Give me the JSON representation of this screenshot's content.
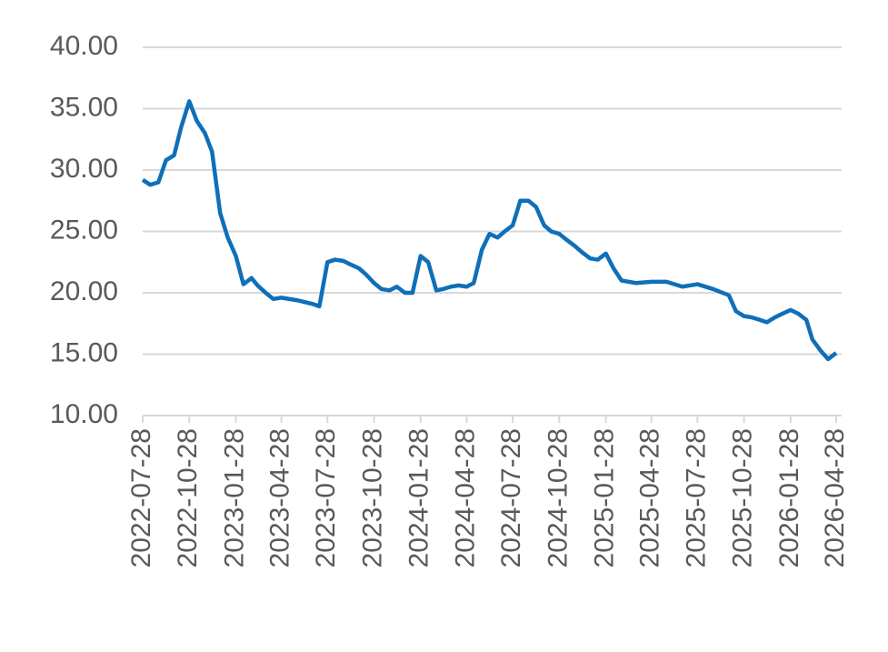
{
  "chart_data": {
    "type": "line",
    "x": [
      "2022-07-28",
      "2022-08-12",
      "2022-08-28",
      "2022-09-12",
      "2022-09-28",
      "2022-10-12",
      "2022-10-28",
      "2022-11-12",
      "2022-11-28",
      "2022-12-12",
      "2022-12-28",
      "2023-01-12",
      "2023-01-28",
      "2023-02-12",
      "2023-02-28",
      "2023-03-12",
      "2023-03-28",
      "2023-04-12",
      "2023-04-28",
      "2023-05-28",
      "2023-06-28",
      "2023-07-12",
      "2023-07-28",
      "2023-08-12",
      "2023-08-28",
      "2023-09-12",
      "2023-09-28",
      "2023-10-12",
      "2023-10-28",
      "2023-11-12",
      "2023-11-28",
      "2023-12-12",
      "2023-12-28",
      "2024-01-12",
      "2024-01-28",
      "2024-02-12",
      "2024-02-28",
      "2024-03-12",
      "2024-03-28",
      "2024-04-12",
      "2024-04-28",
      "2024-05-12",
      "2024-05-28",
      "2024-06-12",
      "2024-06-28",
      "2024-07-12",
      "2024-07-28",
      "2024-08-12",
      "2024-08-28",
      "2024-09-12",
      "2024-09-28",
      "2024-10-12",
      "2024-10-28",
      "2024-11-12",
      "2024-11-28",
      "2024-12-12",
      "2024-12-28",
      "2025-01-12",
      "2025-01-28",
      "2025-02-12",
      "2025-02-28",
      "2025-03-28",
      "2025-04-28",
      "2025-05-28",
      "2025-06-28",
      "2025-07-28",
      "2025-08-28",
      "2025-09-28",
      "2025-10-12",
      "2025-10-28",
      "2025-11-12",
      "2025-11-28",
      "2025-12-12",
      "2025-12-28",
      "2026-01-12",
      "2026-01-28",
      "2026-02-12",
      "2026-02-28",
      "2026-03-12",
      "2026-03-28",
      "2026-04-12",
      "2026-04-28"
    ],
    "series": [
      {
        "color": "#0f6fb8",
        "values": [
          29.2,
          28.8,
          29.0,
          30.8,
          31.2,
          33.5,
          35.6,
          34.0,
          33.0,
          31.5,
          26.5,
          24.5,
          23.0,
          20.7,
          21.2,
          20.6,
          20.0,
          19.5,
          19.6,
          19.4,
          19.1,
          18.9,
          22.5,
          22.7,
          22.6,
          22.3,
          22.0,
          21.5,
          20.8,
          20.3,
          20.2,
          20.5,
          20.0,
          20.0,
          23.0,
          22.5,
          20.2,
          20.3,
          20.5,
          20.6,
          20.5,
          20.8,
          23.5,
          24.8,
          24.5,
          25.0,
          25.5,
          27.5,
          27.5,
          27.0,
          25.5,
          25.0,
          24.8,
          24.3,
          23.8,
          23.3,
          22.8,
          22.7,
          23.2,
          22.0,
          21.0,
          20.8,
          20.9,
          20.9,
          20.5,
          20.7,
          20.3,
          19.8,
          18.5,
          18.1,
          18.0,
          17.8,
          17.6,
          18.0,
          18.3,
          18.6,
          18.3,
          17.8,
          16.2,
          15.3,
          14.6,
          15.1
        ]
      }
    ],
    "xlim": [
      "2022-07-28",
      "2026-04-28"
    ],
    "xticks": [
      "2022-07-28",
      "2022-10-28",
      "2023-01-28",
      "2023-04-28",
      "2023-07-28",
      "2023-10-28",
      "2024-01-28",
      "2024-04-28",
      "2024-07-28",
      "2024-10-28",
      "2025-01-28",
      "2025-04-28",
      "2025-07-28",
      "2025-10-28",
      "2026-01-28",
      "2026-04-28"
    ],
    "ylim": [
      10,
      40
    ],
    "yticks": [
      {
        "value": 10,
        "label": "10.00"
      },
      {
        "value": 15,
        "label": "15.00"
      },
      {
        "value": 20,
        "label": "20.00"
      },
      {
        "value": 25,
        "label": "25.00"
      },
      {
        "value": 30,
        "label": "30.00"
      },
      {
        "value": 35,
        "label": "35.00"
      },
      {
        "value": 40,
        "label": "40.00"
      }
    ],
    "grid": true
  }
}
